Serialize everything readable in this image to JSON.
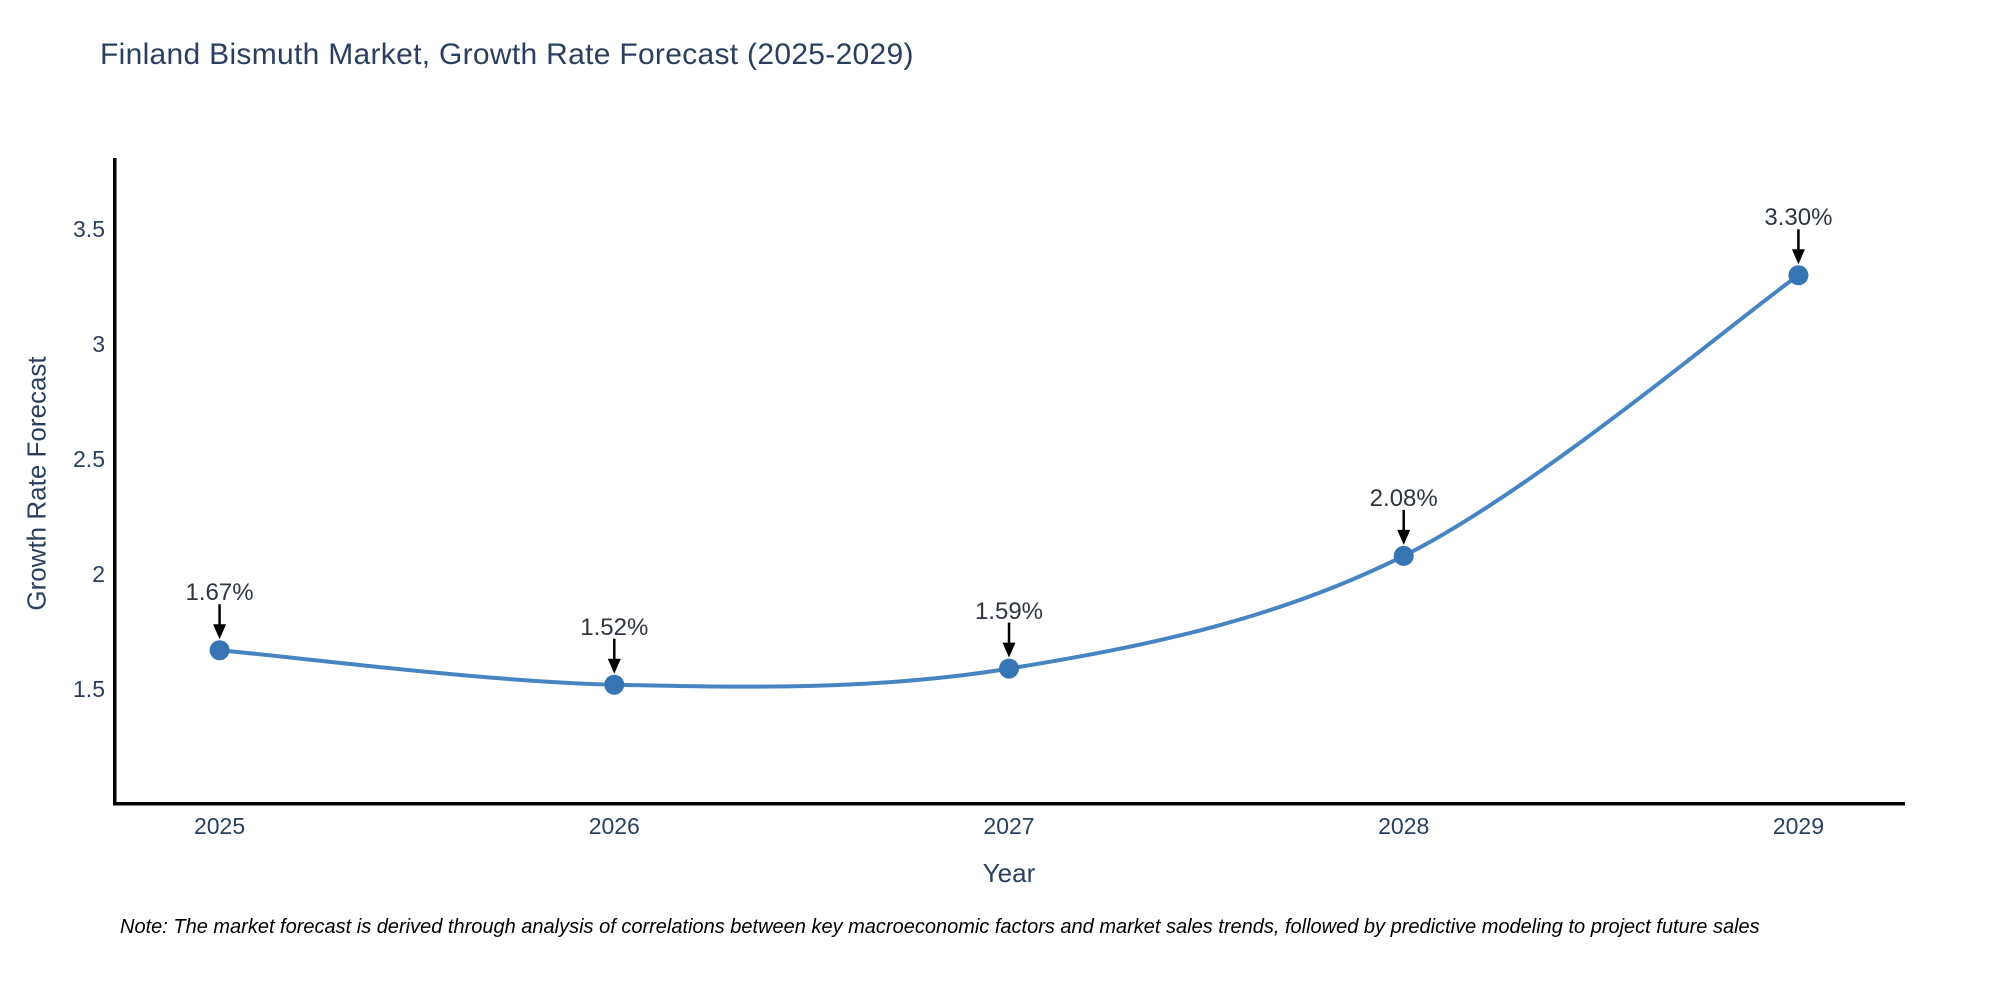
{
  "title": "Finland Bismuth Market, Growth Rate Forecast (2025-2029)",
  "note": "Note: The market forecast is derived through analysis of correlations between key macroeconomic factors and market sales trends, followed by predictive modeling to project future sales",
  "chart_data": {
    "type": "line",
    "title": "Finland Bismuth Market, Growth Rate Forecast (2025-2029)",
    "xlabel": "Year",
    "ylabel": "Growth Rate Forecast",
    "x": [
      2025,
      2026,
      2027,
      2028,
      2029
    ],
    "series": [
      {
        "name": "Growth Rate Forecast",
        "values": [
          1.67,
          1.52,
          1.59,
          2.08,
          3.3
        ]
      }
    ],
    "point_labels": [
      "1.67%",
      "1.52%",
      "1.59%",
      "2.08%",
      "3.30%"
    ],
    "x_tick_labels": [
      "2025",
      "2026",
      "2027",
      "2028",
      "2029"
    ],
    "y_ticks": [
      1.5,
      2,
      2.5,
      3,
      3.5
    ],
    "y_tick_labels": [
      "1.5",
      "2",
      "2.5",
      "3",
      "3.5"
    ],
    "xlim": [
      2024.73,
      2029.27
    ],
    "ylim": [
      1.01,
      3.81
    ],
    "grid": false,
    "legend": false,
    "smooth": true,
    "line_color": "#4785c2",
    "marker_color": "#3674b3",
    "arrow_color": "#000000",
    "axis_line_color": "#000000",
    "text_color": "#2a3f5f",
    "annotation_text_color": "#2f3640",
    "background_color": "#ffffff"
  }
}
